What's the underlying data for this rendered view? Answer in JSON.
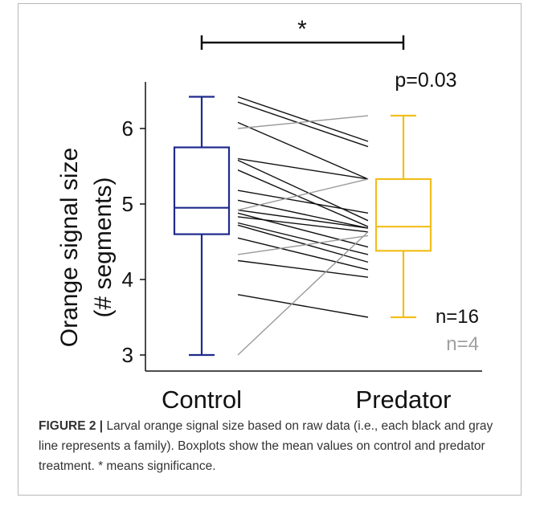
{
  "chart_data": {
    "type": "boxplot",
    "categories": [
      "Control",
      "Predator"
    ],
    "ylabel_line1": "Orange signal size",
    "ylabel_line2": "(# segments)",
    "ylim": [
      3,
      6.5
    ],
    "yticks": [
      3,
      4,
      5,
      6
    ],
    "boxes": [
      {
        "category": "Control",
        "whisker_low": 3.0,
        "q1": 4.6,
        "median": 4.95,
        "q3": 5.75,
        "whisker_high": 6.42,
        "color": "#1f2a8c"
      },
      {
        "category": "Predator",
        "whisker_low": 3.5,
        "q1": 4.38,
        "median": 4.7,
        "q3": 5.33,
        "whisker_high": 6.17,
        "color": "#f2be1a"
      }
    ],
    "families": [
      {
        "group": "black",
        "control": 6.42,
        "predator": 5.83
      },
      {
        "group": "black",
        "control": 6.35,
        "predator": 5.76
      },
      {
        "group": "black",
        "control": 6.08,
        "predator": 5.33
      },
      {
        "group": "black",
        "control": 5.6,
        "predator": 5.33
      },
      {
        "group": "black",
        "control": 5.58,
        "predator": 4.78
      },
      {
        "group": "black",
        "control": 5.45,
        "predator": 4.7
      },
      {
        "group": "black",
        "control": 5.18,
        "predator": 4.88
      },
      {
        "group": "black",
        "control": 5.05,
        "predator": 4.68
      },
      {
        "group": "black",
        "control": 4.92,
        "predator": 4.68
      },
      {
        "group": "black",
        "control": 4.88,
        "predator": 4.43
      },
      {
        "group": "black",
        "control": 4.83,
        "predator": 4.63
      },
      {
        "group": "black",
        "control": 4.75,
        "predator": 4.33
      },
      {
        "group": "black",
        "control": 4.72,
        "predator": 4.23
      },
      {
        "group": "black",
        "control": 4.55,
        "predator": 4.13
      },
      {
        "group": "black",
        "control": 4.25,
        "predator": 4.03
      },
      {
        "group": "black",
        "control": 3.8,
        "predator": 3.5
      },
      {
        "group": "gray",
        "control": 6.0,
        "predator": 6.17
      },
      {
        "group": "gray",
        "control": 4.92,
        "predator": 5.33
      },
      {
        "group": "gray",
        "control": 4.33,
        "predator": 4.58
      },
      {
        "group": "gray",
        "control": 3.0,
        "predator": 4.63
      }
    ],
    "significance_label": "*",
    "p_value_label": "p=0.03",
    "n_black_label": "n=16",
    "n_gray_label": "n=4",
    "colors": {
      "control": "#1f2a8c",
      "predator": "#f2be1a",
      "black_line": "#111111",
      "gray_line": "#9a9a9a",
      "gray_text": "#a0a0a0"
    }
  },
  "caption": {
    "figure_label": "FIGURE 2 |",
    "text": " Larval orange signal size based on raw data (i.e., each black and gray line represents a family). Boxplots show the mean values on control and predator treatment. * means significance."
  }
}
